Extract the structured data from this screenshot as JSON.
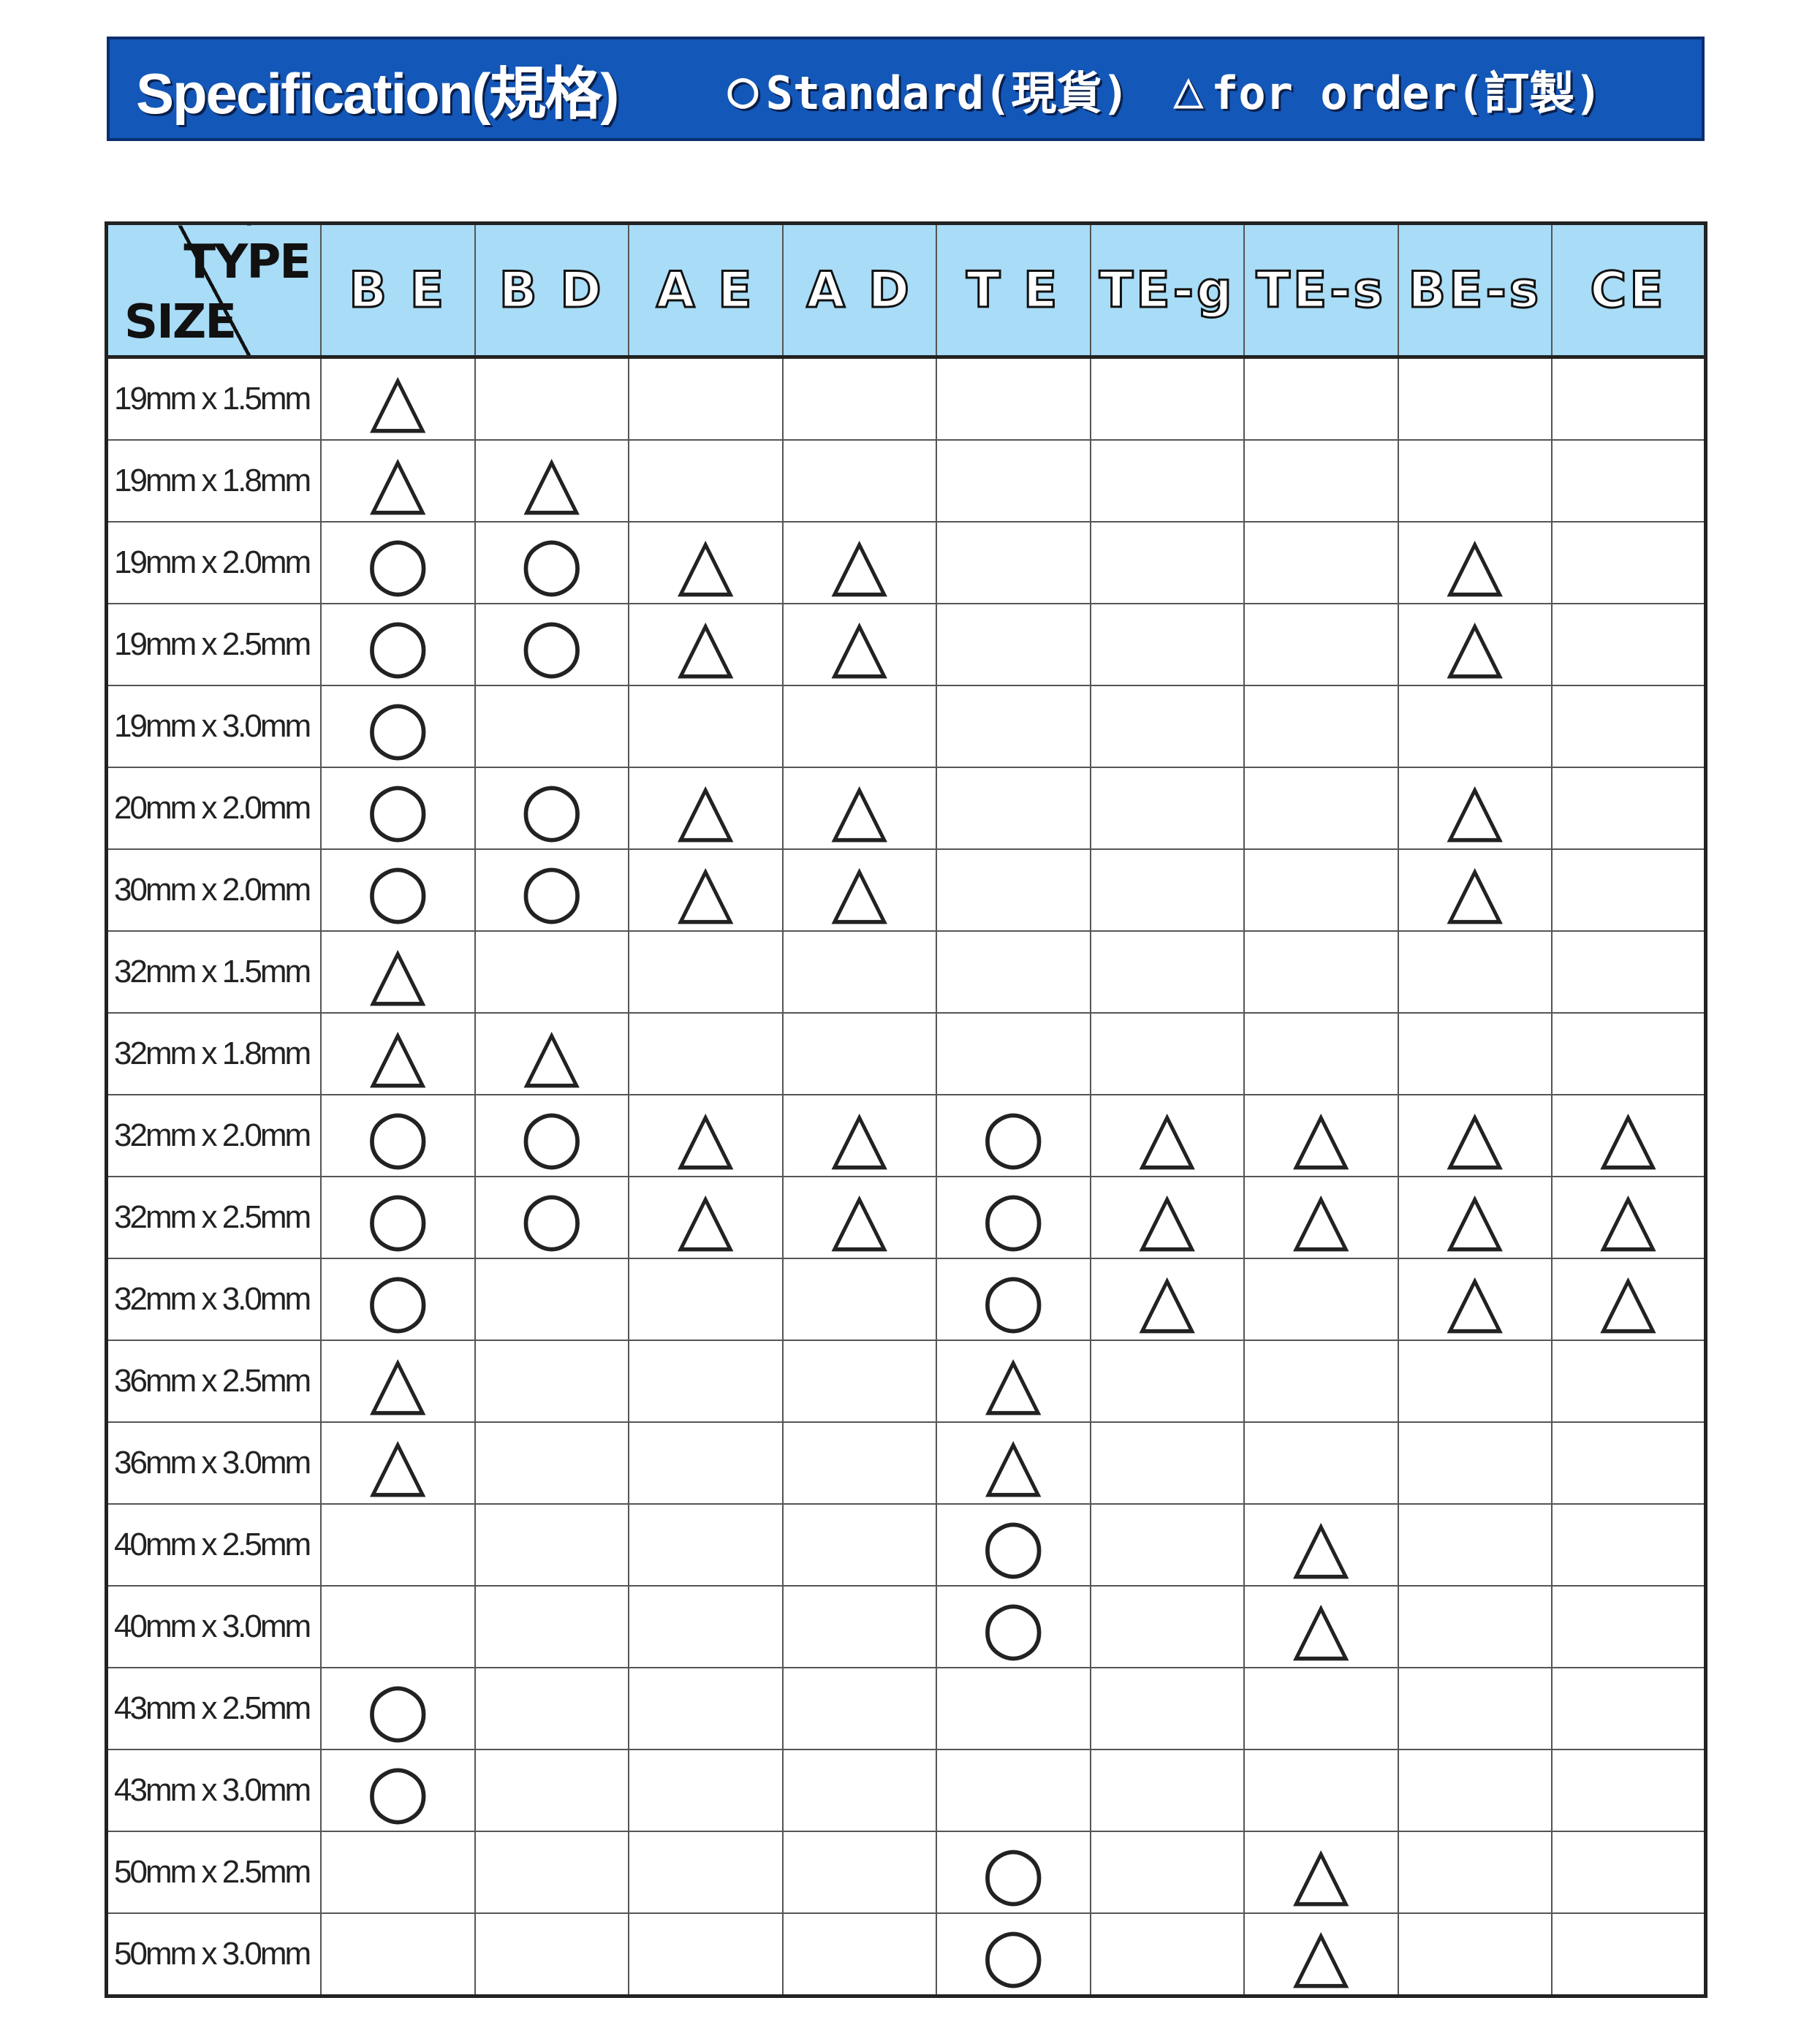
{
  "banner": {
    "title": "Specification(規格)",
    "standard_symbol": "○",
    "standard_label": "Standard(現貨)",
    "order_symbol": "△",
    "order_label": "for order(訂製)",
    "background_color": "#1357b8"
  },
  "table": {
    "corner_type": "TYPE",
    "corner_size": "SIZE",
    "header_color": "#a8dcf7",
    "columns": [
      "B E",
      "B D",
      "A E",
      "A D",
      "T E",
      "TE-g",
      "TE-s",
      "BE-s",
      "CE"
    ],
    "rows": [
      {
        "size": "19mm x 1.5mm",
        "marks": [
          "△",
          "",
          "",
          "",
          "",
          "",
          "",
          "",
          ""
        ]
      },
      {
        "size": "19mm x 1.8mm",
        "marks": [
          "△",
          "△",
          "",
          "",
          "",
          "",
          "",
          "",
          ""
        ]
      },
      {
        "size": "19mm x 2.0mm",
        "marks": [
          "○",
          "○",
          "△",
          "△",
          "",
          "",
          "",
          "△",
          ""
        ]
      },
      {
        "size": "19mm x 2.5mm",
        "marks": [
          "○",
          "○",
          "△",
          "△",
          "",
          "",
          "",
          "△",
          ""
        ]
      },
      {
        "size": "19mm x 3.0mm",
        "marks": [
          "○",
          "",
          "",
          "",
          "",
          "",
          "",
          "",
          ""
        ]
      },
      {
        "size": "20mm x 2.0mm",
        "marks": [
          "○",
          "○",
          "△",
          "△",
          "",
          "",
          "",
          "△",
          ""
        ]
      },
      {
        "size": "30mm x 2.0mm",
        "marks": [
          "○",
          "○",
          "△",
          "△",
          "",
          "",
          "",
          "△",
          ""
        ]
      },
      {
        "size": "32mm x 1.5mm",
        "marks": [
          "△",
          "",
          "",
          "",
          "",
          "",
          "",
          "",
          ""
        ]
      },
      {
        "size": "32mm x 1.8mm",
        "marks": [
          "△",
          "△",
          "",
          "",
          "",
          "",
          "",
          "",
          ""
        ]
      },
      {
        "size": "32mm x 2.0mm",
        "marks": [
          "○",
          "○",
          "△",
          "△",
          "○",
          "△",
          "△",
          "△",
          "△"
        ]
      },
      {
        "size": "32mm x 2.5mm",
        "marks": [
          "○",
          "○",
          "△",
          "△",
          "○",
          "△",
          "△",
          "△",
          "△"
        ]
      },
      {
        "size": "32mm x 3.0mm",
        "marks": [
          "○",
          "",
          "",
          "",
          "○",
          "△",
          "",
          "△",
          "△"
        ]
      },
      {
        "size": "36mm x 2.5mm",
        "marks": [
          "△",
          "",
          "",
          "",
          "△",
          "",
          "",
          "",
          ""
        ]
      },
      {
        "size": "36mm x 3.0mm",
        "marks": [
          "△",
          "",
          "",
          "",
          "△",
          "",
          "",
          "",
          ""
        ]
      },
      {
        "size": "40mm x 2.5mm",
        "marks": [
          "",
          "",
          "",
          "",
          "○",
          "",
          "△",
          "",
          ""
        ]
      },
      {
        "size": "40mm x 3.0mm",
        "marks": [
          "",
          "",
          "",
          "",
          "○",
          "",
          "△",
          "",
          ""
        ]
      },
      {
        "size": "43mm x 2.5mm",
        "marks": [
          "○",
          "",
          "",
          "",
          "",
          "",
          "",
          "",
          ""
        ]
      },
      {
        "size": "43mm x 3.0mm",
        "marks": [
          "○",
          "",
          "",
          "",
          "",
          "",
          "",
          "",
          ""
        ]
      },
      {
        "size": "50mm x 2.5mm",
        "marks": [
          "",
          "",
          "",
          "",
          "○",
          "",
          "△",
          "",
          ""
        ]
      },
      {
        "size": "50mm x 3.0mm",
        "marks": [
          "",
          "",
          "",
          "",
          "○",
          "",
          "△",
          "",
          ""
        ]
      }
    ]
  }
}
